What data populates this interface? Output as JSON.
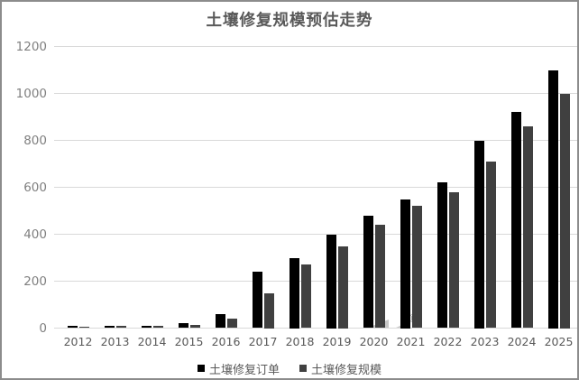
{
  "chart_data": {
    "type": "bar",
    "title": "土壤修复规模预估走势",
    "categories": [
      "2012",
      "2013",
      "2014",
      "2015",
      "2016",
      "2017",
      "2018",
      "2019",
      "2020",
      "2021",
      "2022",
      "2023",
      "2024",
      "2025"
    ],
    "series": [
      {
        "name": "土壤修复订单",
        "color": "#000000",
        "values": [
          10,
          10,
          10,
          20,
          60,
          240,
          300,
          400,
          480,
          550,
          620,
          800,
          920,
          1100
        ]
      },
      {
        "name": "土壤修复规模",
        "color": "#404040",
        "values": [
          5,
          10,
          10,
          15,
          40,
          150,
          270,
          350,
          440,
          520,
          580,
          710,
          860,
          1000
        ]
      }
    ],
    "xlabel": "",
    "ylabel": "",
    "ylim": [
      0,
      1200
    ],
    "yticks": [
      0,
      200,
      400,
      600,
      800,
      1000,
      1200
    ],
    "grid": true,
    "legend_position": "bottom",
    "colors": {
      "gridline": "#d9d9d9",
      "y_tick_label": "#7f7f7f",
      "x_tick_label": "#595959",
      "title": "#595959",
      "background": "#ffffff",
      "border": "#8c8c8c"
    }
  },
  "watermark": {
    "registered_mark": "®"
  }
}
